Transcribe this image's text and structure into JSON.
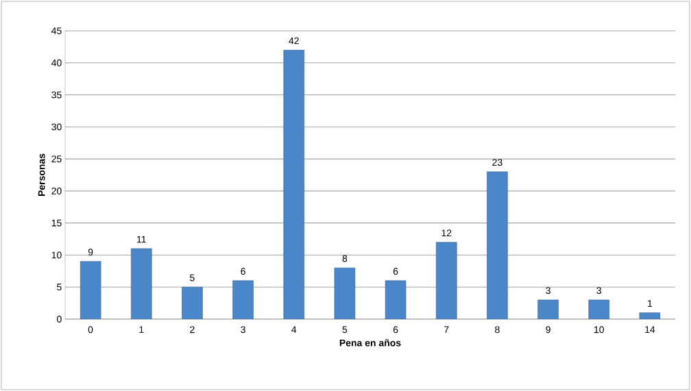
{
  "chart_data": {
    "type": "bar",
    "xlabel": "Pena en años",
    "ylabel": "Personas",
    "categories": [
      "0",
      "1",
      "2",
      "3",
      "4",
      "5",
      "6",
      "7",
      "8",
      "9",
      "10",
      "14"
    ],
    "values": [
      9,
      11,
      5,
      6,
      42,
      8,
      6,
      12,
      23,
      3,
      3,
      1
    ],
    "color": "#4a86c8",
    "ylim": [
      0,
      45
    ],
    "yticks": [
      0,
      5,
      10,
      15,
      20,
      25,
      30,
      35,
      40,
      45
    ],
    "grid": "y",
    "data_labels": true
  }
}
